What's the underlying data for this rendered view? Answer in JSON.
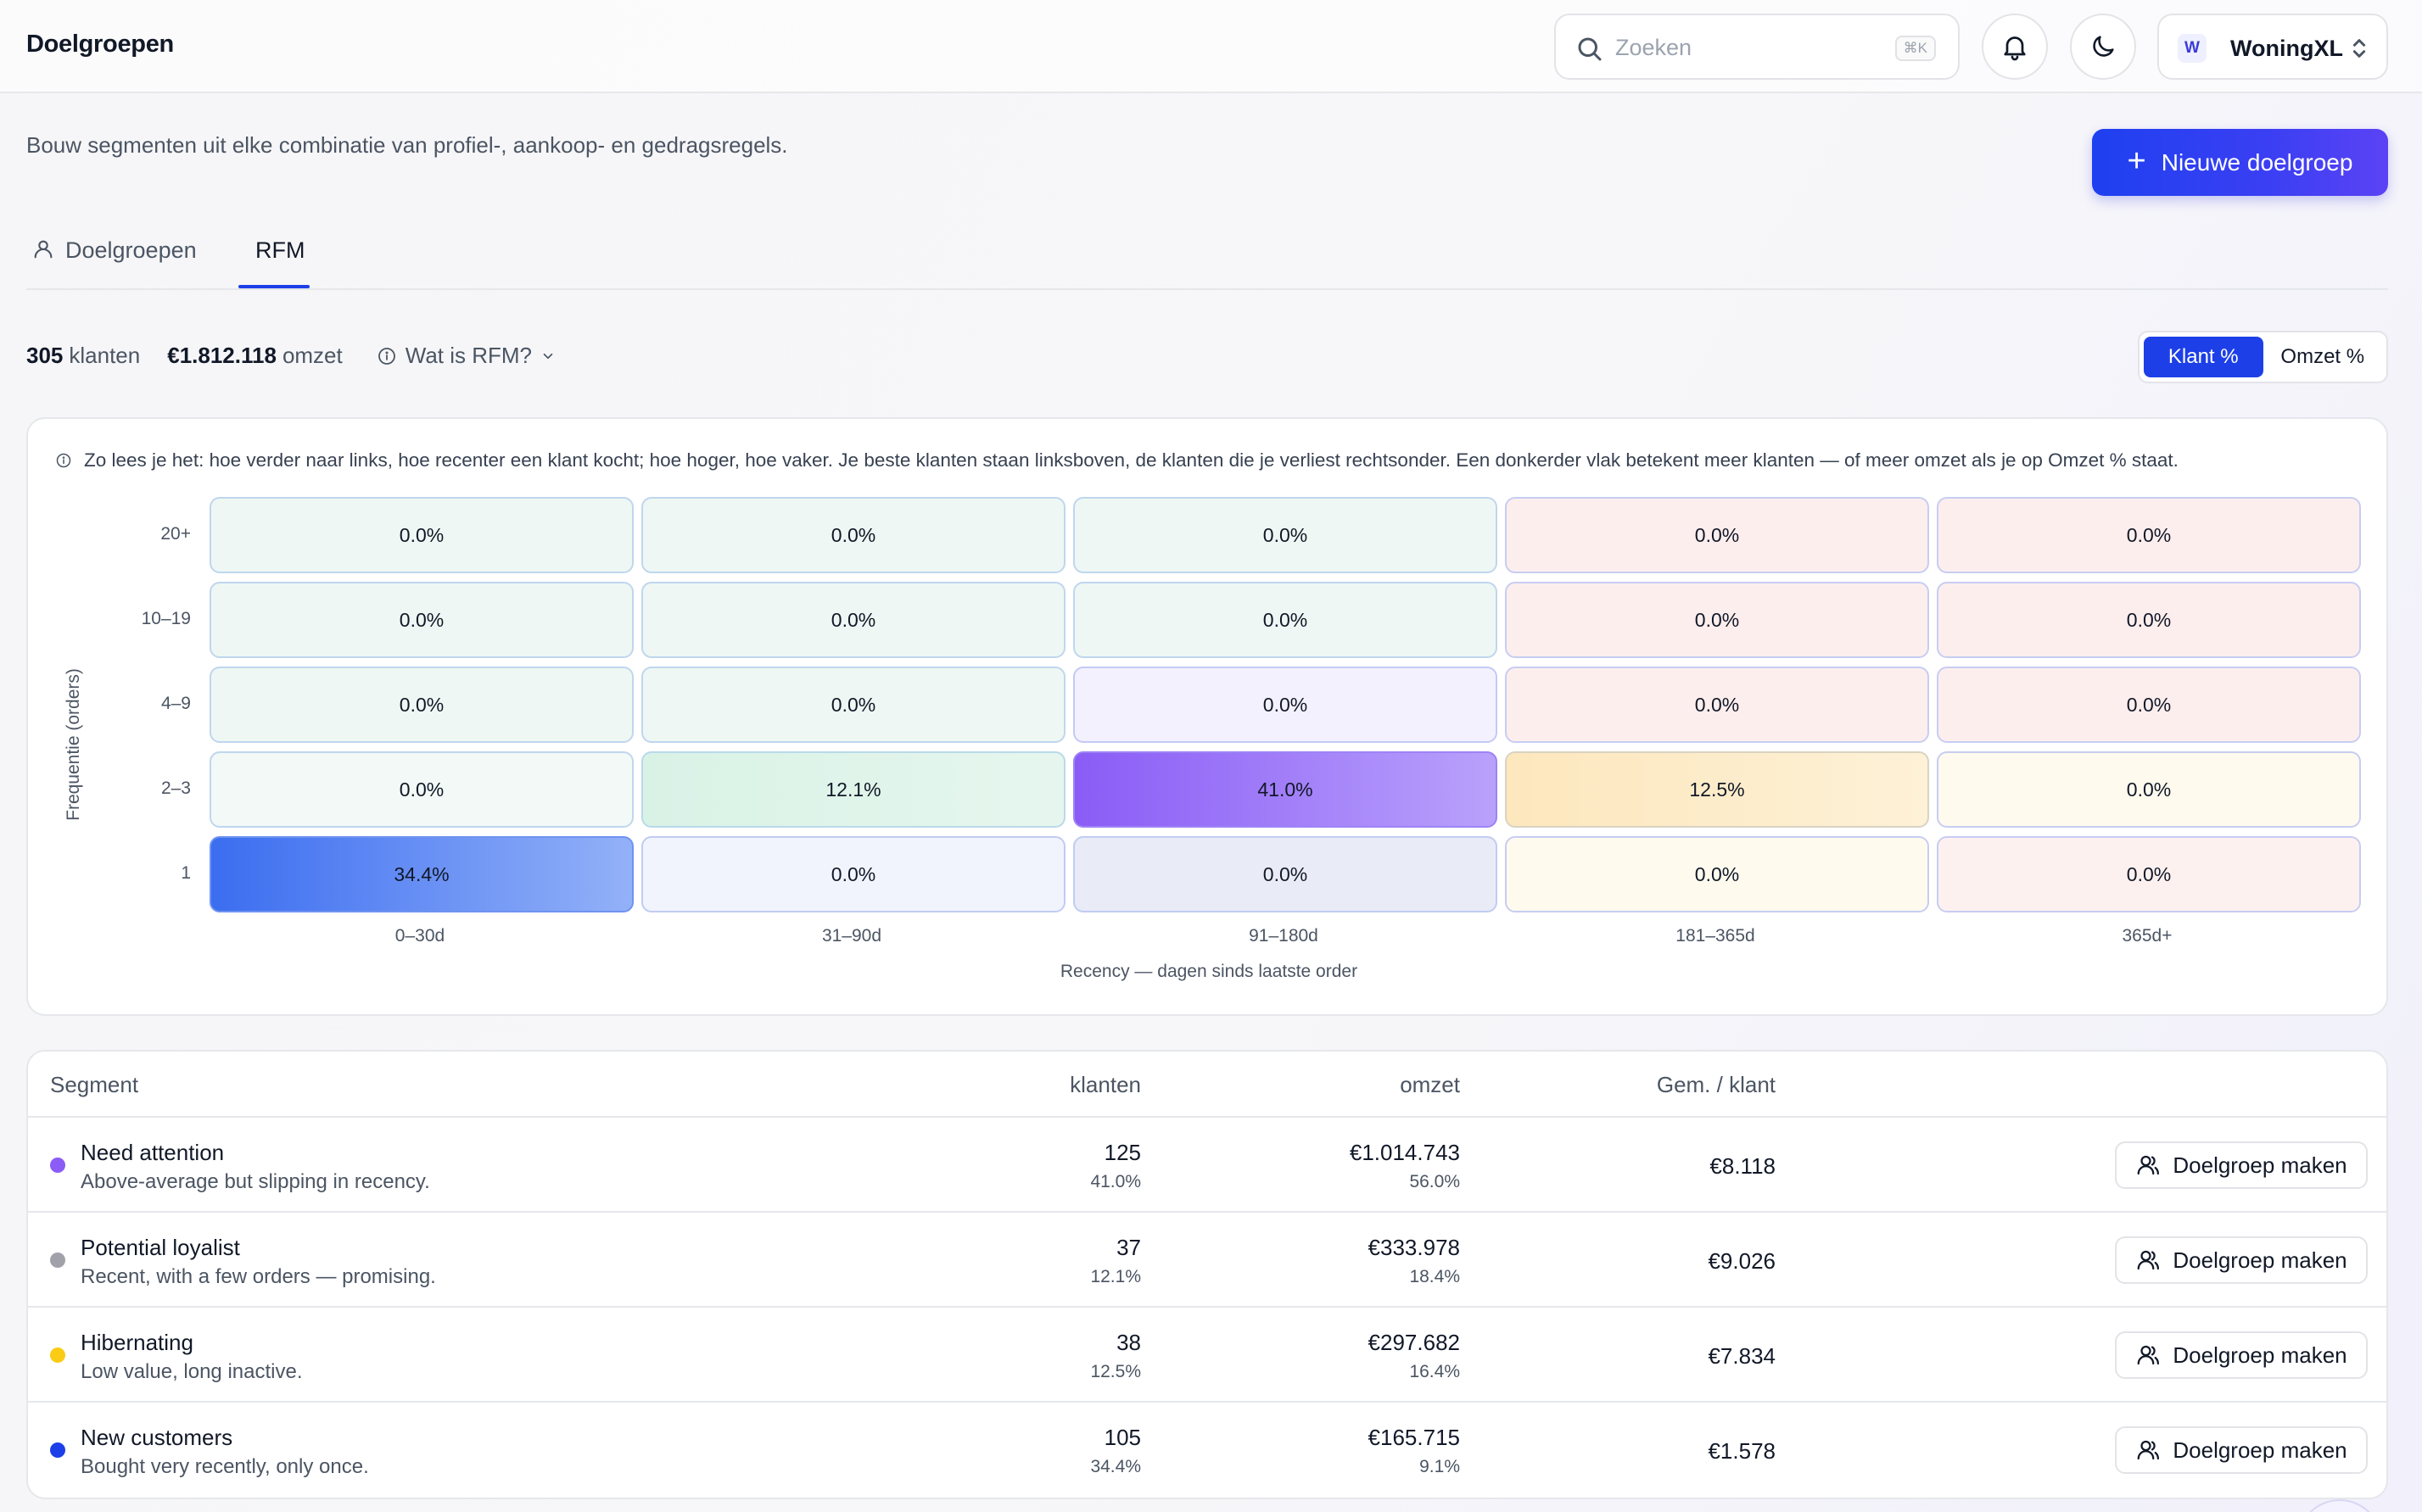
{
  "header": {
    "title": "Doelgroepen",
    "search_placeholder": "Zoeken",
    "search_shortcut": "⌘K",
    "workspace_initial": "W",
    "workspace_name": "WoningXL"
  },
  "page": {
    "subtitle": "Bouw segmenten uit elke combinatie van profiel-, aankoop- en gedragsregels.",
    "new_button": "Nieuwe doelgroep"
  },
  "tabs": [
    {
      "label": "Doelgroepen",
      "active": false
    },
    {
      "label": "RFM",
      "active": true
    }
  ],
  "stats": {
    "customers_value": "305",
    "customers_label": "klanten",
    "revenue_value": "€1.812.118",
    "revenue_label": "omzet",
    "help_label": "Wat is RFM?"
  },
  "toggle": {
    "options": [
      "Klant %",
      "Omzet %"
    ],
    "selected": "Klant %"
  },
  "matrix": {
    "hint": "Zo lees je het: hoe verder naar links, hoe recenter een klant kocht; hoe hoger, hoe vaker. Je beste klanten staan linksboven, de klanten die je verliest rechtsonder. Een donkerder vlak betekent meer klanten — of meer omzet als je op Omzet % staat.",
    "y_axis_label": "Frequentie (orders)",
    "x_axis_label": "Recency — dagen sinds laatste order",
    "y_labels": [
      "20+",
      "10–19",
      "4–9",
      "2–3",
      "1"
    ],
    "x_labels": [
      "0–30d",
      "31–90d",
      "91–180d",
      "181–365d",
      "365d+"
    ],
    "cells": [
      [
        "0.0%",
        "0.0%",
        "0.0%",
        "0.0%",
        "0.0%"
      ],
      [
        "0.0%",
        "0.0%",
        "0.0%",
        "0.0%",
        "0.0%"
      ],
      [
        "0.0%",
        "0.0%",
        "0.0%",
        "0.0%",
        "0.0%"
      ],
      [
        "0.0%",
        "12.1%",
        "41.0%",
        "12.5%",
        "0.0%"
      ],
      [
        "34.4%",
        "0.0%",
        "0.0%",
        "0.0%",
        "0.0%"
      ]
    ]
  },
  "table": {
    "columns": [
      "Segment",
      "klanten",
      "omzet",
      "Gem. / klant"
    ],
    "action_label": "Doelgroep maken",
    "rows": [
      {
        "name": "Need attention",
        "desc": "Above-average but slipping in recency.",
        "color": "#8b5cf6",
        "customers": "125",
        "customers_pct": "41.0%",
        "revenue": "€1.014.743",
        "revenue_pct": "56.0%",
        "avg": "€8.118"
      },
      {
        "name": "Potential loyalist",
        "desc": "Recent, with a few orders — promising.",
        "color": "#a1a1aa",
        "customers": "37",
        "customers_pct": "12.1%",
        "revenue": "€333.978",
        "revenue_pct": "18.4%",
        "avg": "€9.026"
      },
      {
        "name": "Hibernating",
        "desc": "Low value, long inactive.",
        "color": "#facc15",
        "customers": "38",
        "customers_pct": "12.5%",
        "revenue": "€297.682",
        "revenue_pct": "16.4%",
        "avg": "€7.834"
      },
      {
        "name": "New customers",
        "desc": "Bought very recently, only once.",
        "color": "#1d3fe8",
        "customers": "105",
        "customers_pct": "34.4%",
        "revenue": "€165.715",
        "revenue_pct": "9.1%",
        "avg": "€1.578"
      }
    ]
  }
}
